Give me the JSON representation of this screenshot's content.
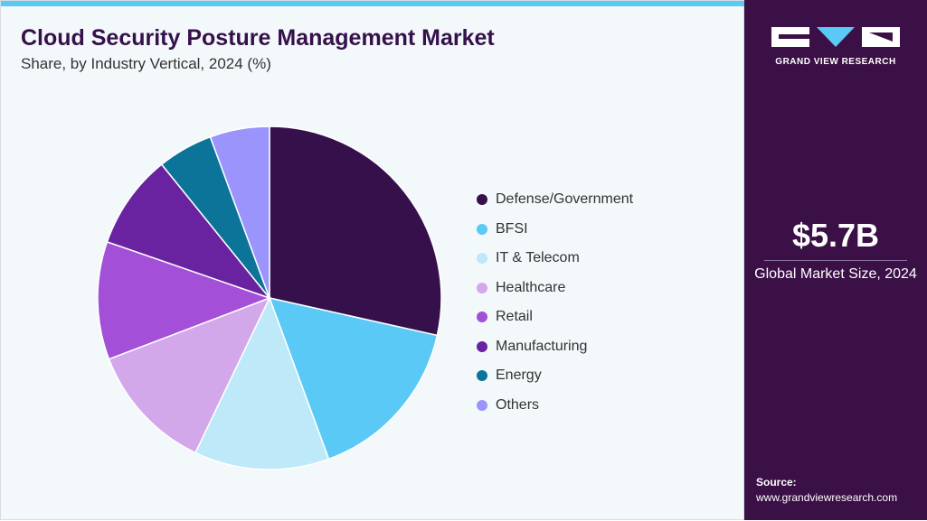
{
  "header": {
    "title": "Cloud Security Posture Management Market",
    "subtitle": "Share, by Industry Vertical, 2024 (%)"
  },
  "side": {
    "logo_text": "GRAND VIEW RESEARCH",
    "market_size": "$5.7B",
    "market_caption": "Global Market Size, 2024",
    "source_label": "Source:",
    "source_url": "www.grandviewresearch.com"
  },
  "chart_data": {
    "type": "pie",
    "title": "Cloud Security Posture Management Market",
    "subtitle": "Share, by Industry Vertical, 2024 (%)",
    "legend_position": "right",
    "categories": [
      "Defense/Government",
      "BFSI",
      "IT & Telecom",
      "Healthcare",
      "Retail",
      "Manufacturing",
      "Energy",
      "Others"
    ],
    "values": [
      28.5,
      15.9,
      12.7,
      12.1,
      11.1,
      8.9,
      5.2,
      5.6
    ],
    "colors": [
      "#35104a",
      "#5bc9f5",
      "#bde9f8",
      "#d3a8ea",
      "#a34fd8",
      "#6a23a0",
      "#0c7499",
      "#9b94fc"
    ]
  }
}
